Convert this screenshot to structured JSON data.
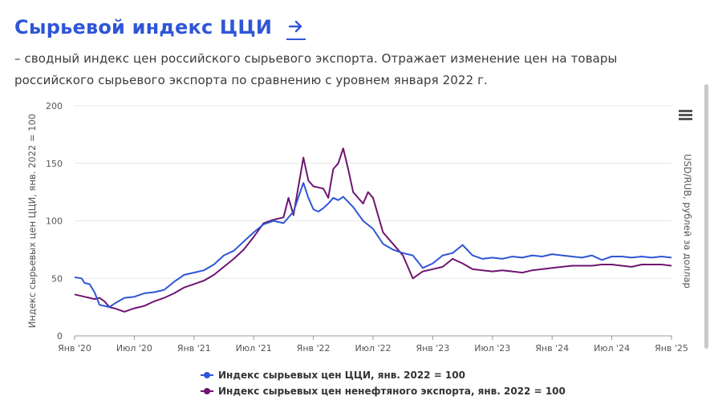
{
  "header": {
    "title": "Сырьевой индекс ЦЦИ",
    "arrow_label": "→",
    "description_line1": "– сводный индекс цен российского сырьевого экспорта. Отражает изменение цен на товары",
    "description_line2": "российского сырьевого экспорта по сравнению с уровнем января 2022 г."
  },
  "chart_data": {
    "type": "line",
    "ylabel_left": "Индекс сырьевых цен ЦЦИ, янв. 2022 = 100",
    "ylabel_right": "USD/RUB, рублей за доллар",
    "ylim": [
      0,
      200
    ],
    "yticks": [
      0,
      50,
      100,
      150,
      200
    ],
    "xlim": [
      0,
      60
    ],
    "x_tick_labels": [
      "Янв '20",
      "Июл '20",
      "Янв '21",
      "Июл '21",
      "Янв '22",
      "Июл '22",
      "Янв '23",
      "Июл '23",
      "Янв '24",
      "Июл '24",
      "Янв '25"
    ],
    "grid": true,
    "legend_position": "bottom",
    "series": [
      {
        "name": "Индекс сырьевых цен ЦЦИ, янв. 2022 = 100",
        "color": "#2f56d6",
        "x": [
          0,
          0.7,
          1,
          1.5,
          2,
          2.5,
          3,
          3.5,
          4,
          5,
          6,
          7,
          8,
          9,
          10,
          11,
          12,
          13,
          14,
          15,
          16,
          17,
          18,
          19,
          20,
          21,
          22,
          23,
          23.5,
          24,
          24.5,
          25,
          25.5,
          26,
          26.5,
          27,
          28,
          29,
          30,
          31,
          32,
          33,
          34,
          35,
          36,
          37,
          38,
          39,
          40,
          41,
          42,
          43,
          44,
          45,
          46,
          47,
          48,
          49,
          50,
          51,
          52,
          53,
          54,
          55,
          56,
          57,
          58,
          59,
          60
        ],
        "y": [
          51,
          50,
          46,
          45,
          38,
          27,
          26,
          25,
          28,
          33,
          34,
          37,
          38,
          40,
          47,
          53,
          55,
          57,
          62,
          70,
          74,
          82,
          90,
          97,
          100,
          98,
          108,
          133,
          120,
          110,
          108,
          111,
          115,
          120,
          118,
          121,
          112,
          100,
          93,
          80,
          75,
          72,
          70,
          59,
          63,
          70,
          72,
          79,
          70,
          67,
          68,
          67,
          69,
          68,
          70,
          69,
          71,
          70,
          69,
          68,
          70,
          66,
          69,
          69,
          68,
          69,
          68,
          69,
          68
        ]
      },
      {
        "name": "Индекс сырьевых цен ненефтяного экспорта, янв. 2022 = 100",
        "color": "#6e1570",
        "x": [
          0,
          1,
          1.5,
          2,
          2.5,
          3,
          3.5,
          4,
          5,
          6,
          7,
          8,
          9,
          10,
          11,
          12,
          13,
          14,
          15,
          16,
          17,
          18,
          19,
          20,
          21,
          21.5,
          22,
          23,
          23.5,
          24,
          25,
          25.5,
          26,
          26.5,
          27,
          27.5,
          28,
          29,
          29.5,
          30,
          31,
          32,
          33,
          33.5,
          34,
          35,
          36,
          37,
          38,
          39,
          40,
          41,
          42,
          43,
          44,
          45,
          46,
          47,
          48,
          49,
          50,
          51,
          52,
          53,
          54,
          55,
          56,
          57,
          58,
          59,
          60
        ],
        "y": [
          36,
          34,
          33,
          32,
          33,
          30,
          25,
          24,
          21,
          24,
          26,
          30,
          33,
          37,
          42,
          45,
          48,
          53,
          60,
          67,
          75,
          86,
          98,
          101,
          103,
          120,
          105,
          155,
          135,
          130,
          128,
          120,
          145,
          150,
          163,
          145,
          125,
          115,
          125,
          120,
          90,
          80,
          70,
          60,
          50,
          56,
          58,
          60,
          67,
          63,
          58,
          57,
          56,
          57,
          56,
          55,
          57,
          58,
          59,
          60,
          61,
          61,
          61,
          62,
          62,
          61,
          60,
          62,
          62,
          62,
          61
        ]
      }
    ]
  },
  "legend": {
    "items": [
      "Индекс сырьевых цен ЦЦИ, янв. 2022 = 100",
      "Индекс сырьевых цен ненефтяного экспорта, янв. 2022 = 100"
    ]
  },
  "colors": {
    "accent": "#2f56d6",
    "series1": "#2f56d6",
    "series2": "#6e1570",
    "grid": "#e6e6e6"
  },
  "icons": {
    "menu": "hamburger-menu-icon",
    "arrow": "arrow-right-icon"
  }
}
